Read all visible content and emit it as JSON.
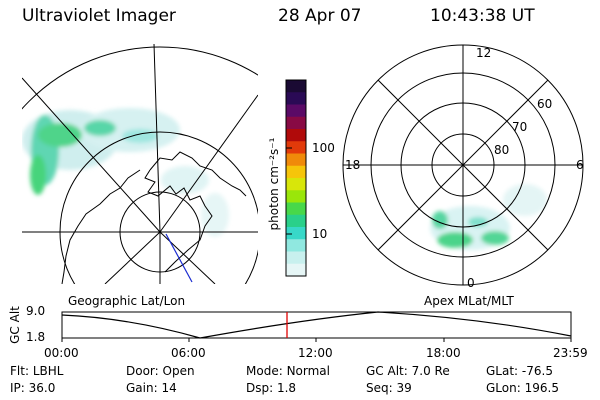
{
  "header": {
    "instrument": "Ultraviolet Imager",
    "date": "28 Apr 07",
    "time": "10:43:38 UT"
  },
  "left_panel": {
    "label": "Geographic Lat/Lon"
  },
  "right_panel": {
    "label": "Apex MLat/MLT",
    "mlt_labels": {
      "top": "12",
      "left": "18",
      "right": "6",
      "bottom": "0"
    },
    "lat_labels": [
      "60",
      "70",
      "80"
    ]
  },
  "colorbar": {
    "unit": "photon cm⁻²s⁻¹",
    "ticks": [
      "100",
      "10"
    ],
    "colors": [
      "#1a0a33",
      "#2a0a55",
      "#5a0a66",
      "#880a44",
      "#b00a0a",
      "#e23a0a",
      "#f08a0a",
      "#f6c50a",
      "#d8e60a",
      "#9ae60a",
      "#48d84a",
      "#2ad08a",
      "#38d8c8",
      "#90e8e0",
      "#c8f0ee",
      "#e6f6f6"
    ]
  },
  "altitude_plot": {
    "ylabel": "GC Alt",
    "yticks": [
      "9.0",
      "1.8"
    ],
    "xticks": [
      "00:00",
      "06:00",
      "12:00",
      "18:00",
      "23:59"
    ],
    "current_time_marker_color": "#e00000"
  },
  "status": {
    "row1": [
      {
        "label": "Flt:",
        "value": "LBHL"
      },
      {
        "label": "Door:",
        "value": "Open"
      },
      {
        "label": "Mode:",
        "value": "Normal"
      },
      {
        "label": "GC Alt:",
        "value": "7.0 Re"
      },
      {
        "label": "GLat:",
        "value": "-76.5"
      }
    ],
    "row2": [
      {
        "label": "IP:",
        "value": "36.0"
      },
      {
        "label": "Gain:",
        "value": "14"
      },
      {
        "label": "Dsp:",
        "value": "1.8"
      },
      {
        "label": "Seq:",
        "value": "39"
      },
      {
        "label": "GLon:",
        "value": "196.5"
      }
    ]
  }
}
